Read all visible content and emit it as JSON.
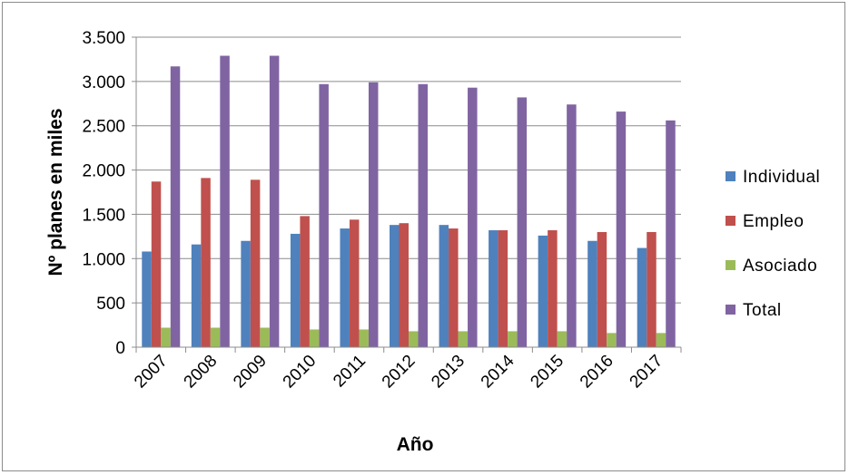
{
  "chart_data": {
    "type": "bar",
    "title": "",
    "xlabel": "Año",
    "ylabel": "Nº planes en miles",
    "categories": [
      "2007",
      "2008",
      "2009",
      "2010",
      "2011",
      "2012",
      "2013",
      "2014",
      "2015",
      "2016",
      "2017"
    ],
    "ylim": [
      0,
      3500
    ],
    "yticks": [
      0,
      500,
      1000,
      1500,
      2000,
      2500,
      3000,
      3500
    ],
    "ytick_labels": [
      "0",
      "500",
      "1.000",
      "1.500",
      "2.000",
      "2.500",
      "3.000",
      "3.500"
    ],
    "grid": true,
    "legend_position": "right",
    "series": [
      {
        "name": "Individual",
        "color": "#4f81bd",
        "values": [
          1080,
          1160,
          1200,
          1280,
          1340,
          1380,
          1380,
          1320,
          1260,
          1200,
          1120
        ]
      },
      {
        "name": "Empleo",
        "color": "#c0504d",
        "values": [
          1870,
          1910,
          1890,
          1480,
          1440,
          1400,
          1340,
          1320,
          1320,
          1300,
          1300
        ]
      },
      {
        "name": "Asociado",
        "color": "#9bbb59",
        "values": [
          220,
          220,
          220,
          200,
          200,
          180,
          180,
          180,
          180,
          160,
          160
        ]
      },
      {
        "name": "Total",
        "color": "#8064a2",
        "values": [
          3170,
          3290,
          3290,
          2970,
          2990,
          2970,
          2930,
          2820,
          2740,
          2660,
          2560
        ]
      }
    ]
  }
}
